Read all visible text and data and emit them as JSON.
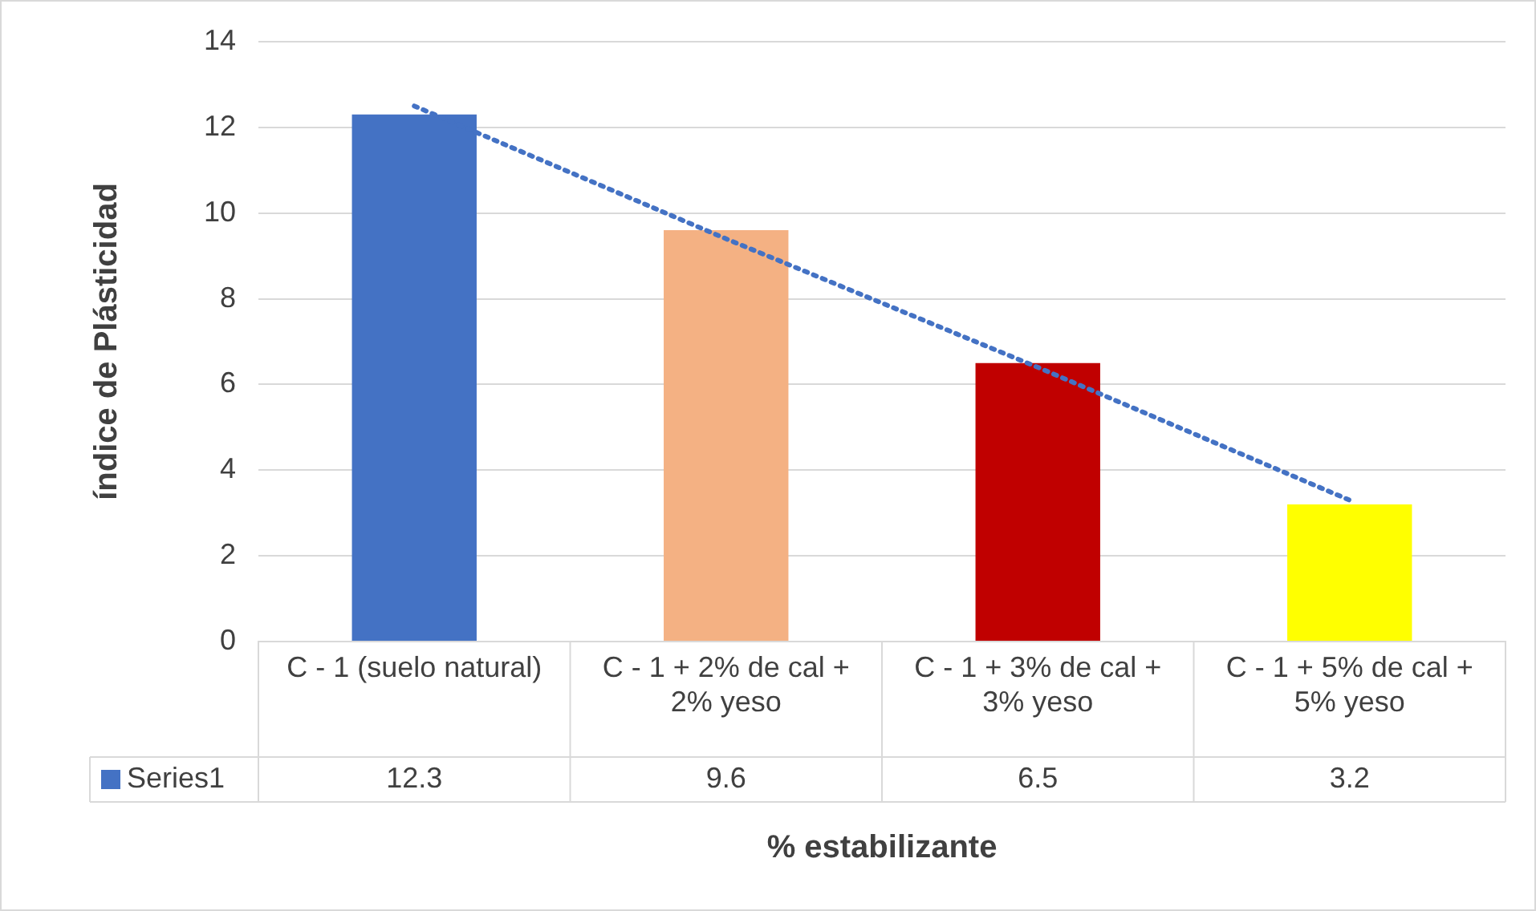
{
  "chart_data": {
    "type": "bar",
    "xlabel": "% estabilizante",
    "ylabel": "índice de Plásticidad",
    "categories": [
      "C - 1 (suelo natural)",
      "C - 1 + 2% de cal + 2% yeso",
      "C - 1 + 3% de cal + 3% yeso",
      "C - 1 + 5% de cal + 5% yeso"
    ],
    "ylim": [
      0,
      14
    ],
    "yticks": [
      0,
      2,
      4,
      6,
      8,
      10,
      12,
      14
    ],
    "grid": "y",
    "legend": "bottom",
    "series": [
      {
        "name": "Series1",
        "color": "#4472c4",
        "colors": [
          "#4472c4",
          "#f4b183",
          "#c00000",
          "#ffff00"
        ],
        "values": [
          12.3,
          9.6,
          6.5,
          3.2
        ],
        "value_labels": [
          "12.3",
          "9.6",
          "6.5",
          "3.2"
        ]
      },
      {
        "type": "line",
        "color": "#4472c4",
        "values": [
          12.5,
          9.4,
          6.4,
          3.3
        ],
        "line_style": "dotted",
        "marker": "none"
      }
    ]
  }
}
